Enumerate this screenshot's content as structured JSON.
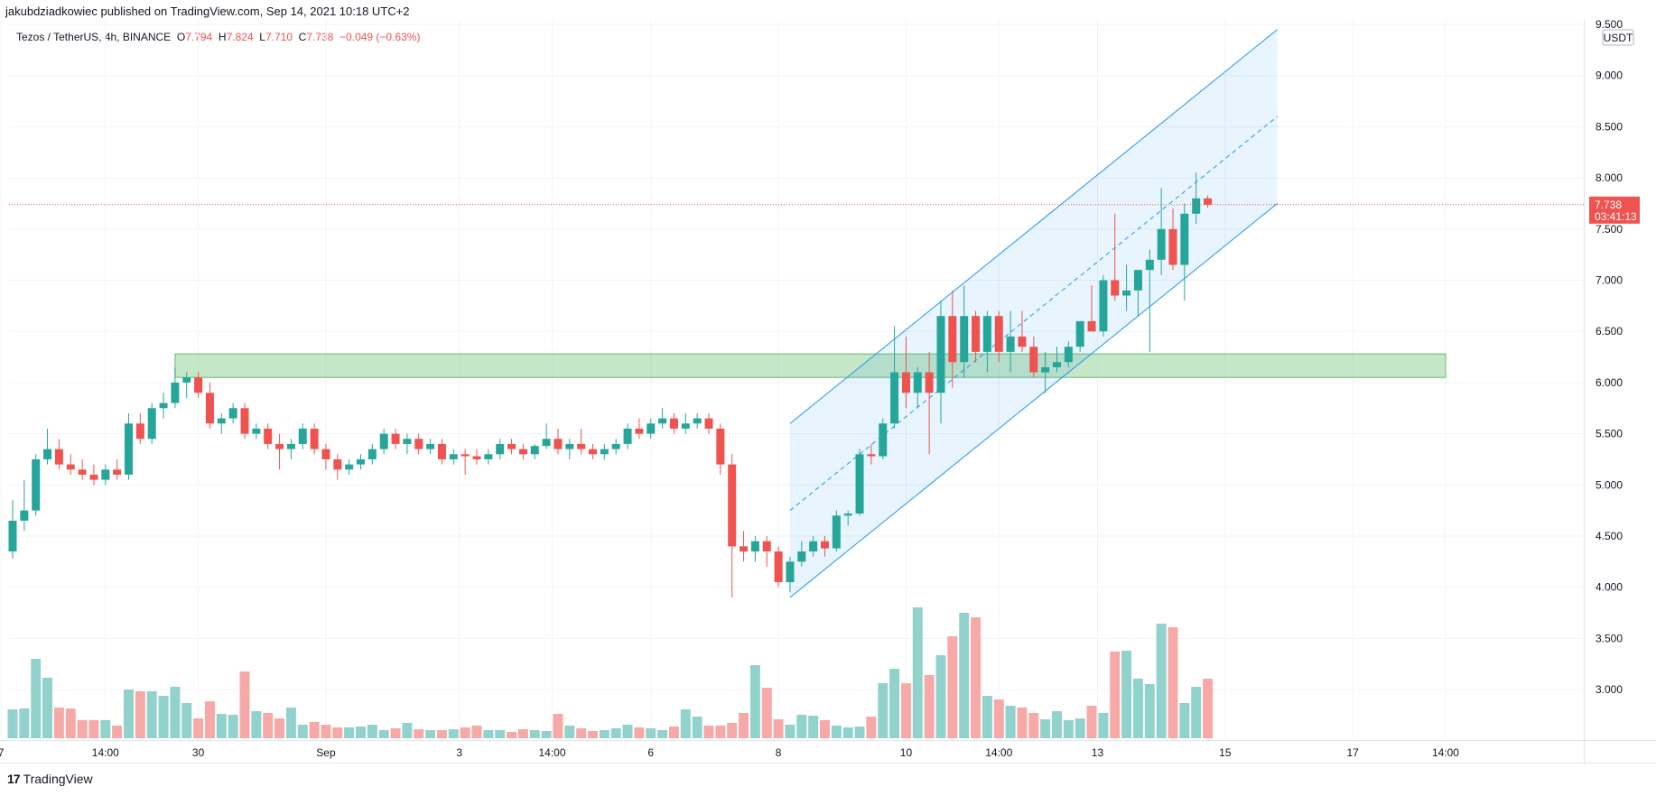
{
  "header": {
    "published": "jakubdziadkowiec published on TradingView.com, Sep 14, 2021 10:18 UTC+2",
    "symbol": "Tezos / TetherUS, 4h, BINANCE",
    "o_label": "O",
    "o": "7.794",
    "h_label": "H",
    "h": "7.824",
    "l_label": "L",
    "l": "7.710",
    "c_label": "C",
    "c": "7.738",
    "change": "−0.049 (−0.63%)"
  },
  "footer": {
    "logo": "17",
    "brand": "TradingView"
  },
  "chart_data": {
    "type": "candlestick",
    "symbol": "Tezos / TetherUS",
    "interval": "4h",
    "exchange": "BINANCE",
    "currency_badge": "USDT",
    "price_axis": {
      "ticks": [
        "3.000",
        "3.500",
        "4.000",
        "4.500",
        "5.000",
        "5.500",
        "6.000",
        "6.500",
        "7.000",
        "7.500",
        "8.000",
        "8.500",
        "9.000",
        "9.500"
      ],
      "range": [
        2.55,
        9.5
      ]
    },
    "time_axis": {
      "ticks": [
        {
          "label": "7",
          "index": -1
        },
        {
          "label": "14:00",
          "index": 8
        },
        {
          "label": "30",
          "index": 16
        },
        {
          "label": "Sep",
          "index": 27
        },
        {
          "label": "3",
          "index": 38.5
        },
        {
          "label": "14:00",
          "index": 46.5
        },
        {
          "label": "6",
          "index": 55
        },
        {
          "label": "8",
          "index": 66
        },
        {
          "label": "10",
          "index": 77
        },
        {
          "label": "14:00",
          "index": 85
        },
        {
          "label": "13",
          "index": 93.5
        },
        {
          "label": "15",
          "index": 104.5
        },
        {
          "label": "17",
          "index": 115.5
        },
        {
          "label": "14:00",
          "index": 123.5
        }
      ]
    },
    "last_price": {
      "value": 7.738,
      "label": "7.738",
      "countdown": "03:41:13",
      "color": "#ef5350"
    },
    "colors": {
      "up": "#26a69a",
      "down": "#ef5350",
      "vol_up": "#92d2cc",
      "vol_down": "#f7a9a7",
      "zone": "#81c784",
      "channel": "#2196f3"
    },
    "support_zone": {
      "from_index": 14,
      "to_index": 123.5,
      "low": 6.05,
      "high": 6.28
    },
    "channel": {
      "start_index": 67,
      "end_index": 109,
      "upper": [
        5.6,
        9.45
      ],
      "mid": [
        4.75,
        8.6
      ],
      "lower": [
        3.9,
        7.75
      ]
    },
    "candles": [
      [
        4.35,
        4.85,
        4.28,
        4.65
      ],
      [
        4.65,
        5.05,
        4.55,
        4.75
      ],
      [
        4.75,
        5.3,
        4.7,
        5.25
      ],
      [
        5.25,
        5.55,
        5.2,
        5.35
      ],
      [
        5.35,
        5.45,
        5.15,
        5.2
      ],
      [
        5.2,
        5.3,
        5.1,
        5.15
      ],
      [
        5.15,
        5.25,
        5.05,
        5.1
      ],
      [
        5.1,
        5.2,
        5.0,
        5.05
      ],
      [
        5.05,
        5.2,
        5.0,
        5.15
      ],
      [
        5.15,
        5.25,
        5.05,
        5.1
      ],
      [
        5.1,
        5.7,
        5.05,
        5.6
      ],
      [
        5.6,
        5.7,
        5.4,
        5.45
      ],
      [
        5.45,
        5.8,
        5.4,
        5.75
      ],
      [
        5.75,
        5.9,
        5.65,
        5.8
      ],
      [
        5.8,
        6.15,
        5.75,
        6.0
      ],
      [
        6.0,
        6.1,
        5.85,
        6.05
      ],
      [
        6.05,
        6.1,
        5.85,
        5.9
      ],
      [
        5.9,
        6.0,
        5.55,
        5.6
      ],
      [
        5.6,
        5.7,
        5.5,
        5.65
      ],
      [
        5.65,
        5.8,
        5.6,
        5.75
      ],
      [
        5.75,
        5.8,
        5.45,
        5.5
      ],
      [
        5.5,
        5.6,
        5.45,
        5.55
      ],
      [
        5.55,
        5.6,
        5.35,
        5.4
      ],
      [
        5.4,
        5.5,
        5.15,
        5.35
      ],
      [
        5.35,
        5.45,
        5.25,
        5.4
      ],
      [
        5.4,
        5.6,
        5.35,
        5.55
      ],
      [
        5.55,
        5.6,
        5.3,
        5.35
      ],
      [
        5.35,
        5.4,
        5.15,
        5.25
      ],
      [
        5.25,
        5.3,
        5.05,
        5.15
      ],
      [
        5.15,
        5.25,
        5.1,
        5.2
      ],
      [
        5.2,
        5.3,
        5.15,
        5.25
      ],
      [
        5.25,
        5.4,
        5.2,
        5.35
      ],
      [
        5.35,
        5.55,
        5.3,
        5.5
      ],
      [
        5.5,
        5.55,
        5.35,
        5.4
      ],
      [
        5.4,
        5.5,
        5.3,
        5.45
      ],
      [
        5.45,
        5.5,
        5.3,
        5.35
      ],
      [
        5.35,
        5.45,
        5.3,
        5.4
      ],
      [
        5.4,
        5.45,
        5.2,
        5.25
      ],
      [
        5.25,
        5.35,
        5.2,
        5.3
      ],
      [
        5.3,
        5.35,
        5.1,
        5.28
      ],
      [
        5.28,
        5.35,
        5.2,
        5.25
      ],
      [
        5.25,
        5.35,
        5.2,
        5.3
      ],
      [
        5.3,
        5.45,
        5.25,
        5.4
      ],
      [
        5.4,
        5.45,
        5.3,
        5.35
      ],
      [
        5.35,
        5.4,
        5.25,
        5.3
      ],
      [
        5.3,
        5.4,
        5.25,
        5.38
      ],
      [
        5.38,
        5.6,
        5.35,
        5.45
      ],
      [
        5.45,
        5.55,
        5.3,
        5.35
      ],
      [
        5.35,
        5.45,
        5.25,
        5.4
      ],
      [
        5.4,
        5.55,
        5.3,
        5.35
      ],
      [
        5.35,
        5.4,
        5.25,
        5.3
      ],
      [
        5.3,
        5.4,
        5.25,
        5.35
      ],
      [
        5.35,
        5.45,
        5.3,
        5.4
      ],
      [
        5.4,
        5.6,
        5.35,
        5.55
      ],
      [
        5.55,
        5.65,
        5.45,
        5.5
      ],
      [
        5.5,
        5.65,
        5.45,
        5.6
      ],
      [
        5.6,
        5.75,
        5.55,
        5.65
      ],
      [
        5.65,
        5.7,
        5.5,
        5.55
      ],
      [
        5.55,
        5.7,
        5.5,
        5.6
      ],
      [
        5.6,
        5.7,
        5.55,
        5.65
      ],
      [
        5.65,
        5.7,
        5.5,
        5.55
      ],
      [
        5.55,
        5.6,
        5.1,
        5.2
      ],
      [
        5.2,
        5.3,
        3.9,
        4.4
      ],
      [
        4.4,
        4.55,
        4.25,
        4.35
      ],
      [
        4.35,
        4.5,
        4.25,
        4.45
      ],
      [
        4.45,
        4.5,
        4.2,
        4.35
      ],
      [
        4.35,
        4.4,
        4.0,
        4.05
      ],
      [
        4.05,
        4.3,
        3.95,
        4.25
      ],
      [
        4.25,
        4.45,
        4.2,
        4.35
      ],
      [
        4.35,
        4.5,
        4.3,
        4.45
      ],
      [
        4.45,
        4.5,
        4.3,
        4.38
      ],
      [
        4.38,
        4.75,
        4.35,
        4.7
      ],
      [
        4.7,
        4.75,
        4.6,
        4.72
      ],
      [
        4.72,
        5.35,
        4.7,
        5.3
      ],
      [
        5.3,
        5.4,
        5.2,
        5.28
      ],
      [
        5.28,
        5.65,
        5.25,
        5.6
      ],
      [
        5.6,
        6.55,
        5.55,
        6.1
      ],
      [
        6.1,
        6.45,
        5.75,
        5.9
      ],
      [
        5.9,
        6.15,
        5.75,
        6.1
      ],
      [
        6.1,
        6.3,
        5.3,
        5.9
      ],
      [
        5.9,
        6.8,
        5.6,
        6.65
      ],
      [
        6.65,
        6.9,
        5.95,
        6.2
      ],
      [
        6.2,
        6.95,
        6.05,
        6.65
      ],
      [
        6.65,
        6.7,
        6.2,
        6.3
      ],
      [
        6.3,
        6.7,
        6.1,
        6.65
      ],
      [
        6.65,
        6.7,
        6.2,
        6.3
      ],
      [
        6.3,
        6.7,
        6.1,
        6.45
      ],
      [
        6.45,
        6.7,
        6.3,
        6.35
      ],
      [
        6.35,
        6.45,
        6.05,
        6.1
      ],
      [
        6.1,
        6.3,
        5.9,
        6.15
      ],
      [
        6.15,
        6.35,
        6.1,
        6.2
      ],
      [
        6.2,
        6.4,
        6.15,
        6.35
      ],
      [
        6.35,
        6.6,
        6.3,
        6.6
      ],
      [
        6.6,
        6.95,
        6.5,
        6.5
      ],
      [
        6.5,
        7.05,
        6.45,
        7.0
      ],
      [
        7.0,
        7.65,
        6.8,
        6.85
      ],
      [
        6.85,
        7.15,
        6.7,
        6.9
      ],
      [
        6.9,
        7.1,
        6.65,
        7.1
      ],
      [
        7.1,
        7.3,
        6.3,
        7.2
      ],
      [
        7.2,
        7.9,
        7.05,
        7.5
      ],
      [
        7.5,
        7.7,
        7.1,
        7.15
      ],
      [
        7.15,
        7.75,
        6.8,
        7.65
      ],
      [
        7.65,
        8.05,
        7.55,
        7.8
      ],
      [
        7.8,
        7.83,
        7.71,
        7.738
      ]
    ],
    "volumes": [
      0.32,
      0.33,
      0.88,
      0.67,
      0.34,
      0.33,
      0.2,
      0.2,
      0.2,
      0.14,
      0.54,
      0.52,
      0.52,
      0.47,
      0.57,
      0.39,
      0.22,
      0.41,
      0.27,
      0.26,
      0.74,
      0.3,
      0.28,
      0.22,
      0.34,
      0.15,
      0.18,
      0.15,
      0.12,
      0.12,
      0.13,
      0.15,
      0.09,
      0.11,
      0.17,
      0.1,
      0.09,
      0.09,
      0.1,
      0.12,
      0.14,
      0.09,
      0.09,
      0.07,
      0.1,
      0.09,
      0.08,
      0.27,
      0.14,
      0.11,
      0.08,
      0.09,
      0.11,
      0.15,
      0.12,
      0.11,
      0.09,
      0.13,
      0.32,
      0.24,
      0.14,
      0.14,
      0.17,
      0.28,
      0.81,
      0.56,
      0.21,
      0.15,
      0.26,
      0.25,
      0.2,
      0.14,
      0.12,
      0.13,
      0.24,
      0.61,
      0.77,
      0.61,
      1.45,
      0.7,
      0.92,
      1.13,
      1.39,
      1.34,
      0.47,
      0.43,
      0.36,
      0.34,
      0.28,
      0.21,
      0.3,
      0.2,
      0.22,
      0.36,
      0.28,
      0.96,
      0.97,
      0.66,
      0.6,
      1.27,
      1.23,
      0.39,
      0.57,
      0.66
    ]
  }
}
